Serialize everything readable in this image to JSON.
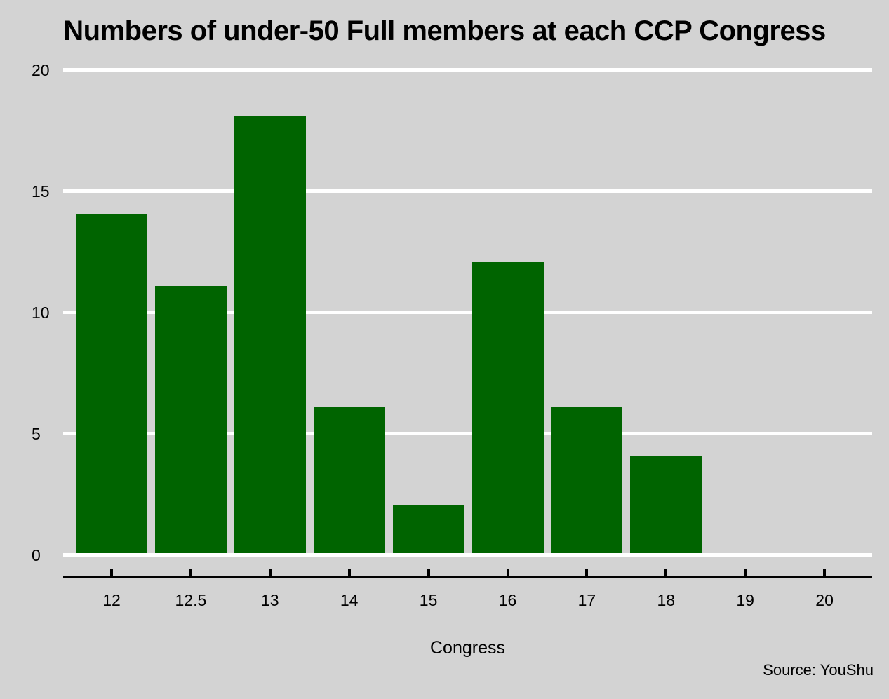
{
  "page": {
    "background_color": "#d3d3d3"
  },
  "chart_data": {
    "type": "bar",
    "title": "Numbers of under-50 Full members at each CCP Congress",
    "xlabel": "Congress",
    "ylabel": "",
    "source": "Source: YouShu",
    "categories": [
      "12",
      "12.5",
      "13",
      "14",
      "15",
      "16",
      "17",
      "18",
      "19",
      "20"
    ],
    "values": [
      14,
      11,
      18,
      6,
      2,
      12,
      6,
      4,
      null,
      null
    ],
    "series": [
      {
        "name": "under-50 Full members",
        "values": [
          14,
          11,
          18,
          6,
          2,
          12,
          6,
          4,
          null,
          null
        ]
      }
    ],
    "yticks": [
      0,
      5,
      10,
      15,
      20
    ],
    "ylim": [
      0,
      20
    ],
    "grid": "horizontal",
    "legend_position": "none",
    "bar_color": "#006400",
    "background_color": "#d3d3d3",
    "gridline_color": "#ffffff",
    "axis_color": "#000000",
    "text_color": "#000000"
  }
}
